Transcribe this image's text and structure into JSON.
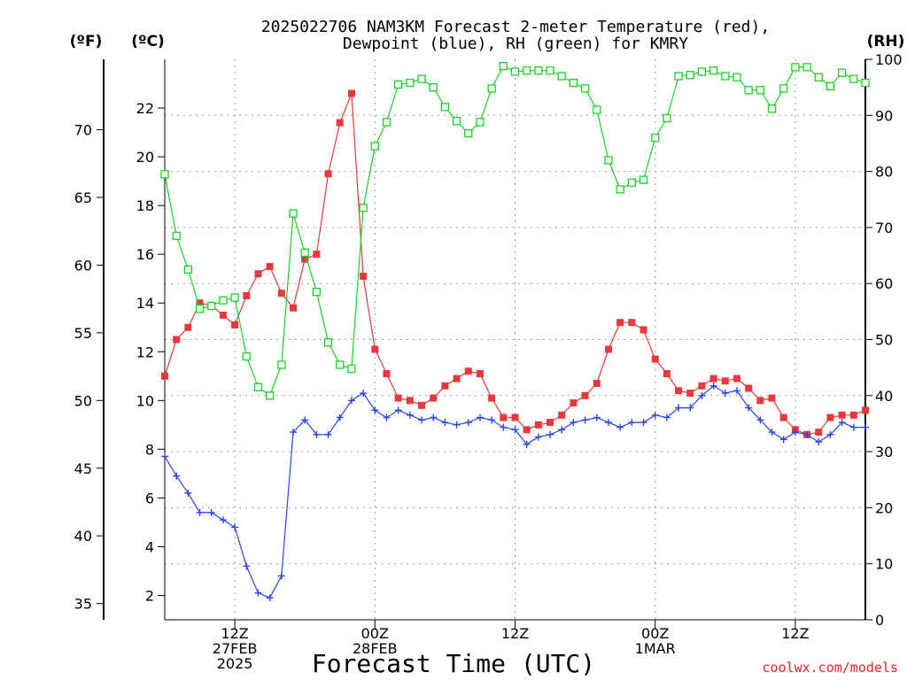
{
  "chart_data": {
    "type": "line",
    "title": [
      "2025022706 NAM3KM Forecast 2-meter Temperature (red),",
      "Dewpoint (blue), RH (green) for KMRY"
    ],
    "xlabel": "Forecast Time (UTC)",
    "watermark": "coolwx.com/models",
    "units": {
      "fahrenheit": "(ºF)",
      "celsius": "(ºC)",
      "rh": "(RH)"
    },
    "x_hours_from_06z_27feb": {
      "min": 0,
      "max": 60,
      "step": 1
    },
    "x_ticks": [
      {
        "hour": 6,
        "lines": [
          "12Z",
          "27FEB",
          "2025"
        ]
      },
      {
        "hour": 18,
        "lines": [
          "00Z",
          "28FEB"
        ]
      },
      {
        "hour": 30,
        "lines": [
          "12Z"
        ]
      },
      {
        "hour": 42,
        "lines": [
          "00Z",
          "1MAR"
        ]
      },
      {
        "hour": 54,
        "lines": [
          "12Z"
        ]
      }
    ],
    "y_left_celsius": {
      "ylim": [
        1,
        24
      ],
      "ticks": [
        2,
        4,
        6,
        8,
        10,
        12,
        14,
        16,
        18,
        20,
        22
      ]
    },
    "y_left_fahrenheit": {
      "ticks": [
        35,
        40,
        45,
        50,
        55,
        60,
        65,
        70
      ]
    },
    "y_right_rh": {
      "ylim": [
        0,
        100
      ],
      "ticks": [
        0,
        10,
        20,
        30,
        40,
        50,
        60,
        70,
        80,
        90,
        100
      ]
    },
    "grid": true,
    "series": [
      {
        "name": "2-meter Temperature",
        "axis": "celsius",
        "color": "#e8383d",
        "marker": "filled-square",
        "values": [
          11.0,
          12.5,
          13.0,
          14.0,
          13.9,
          13.5,
          13.1,
          14.3,
          15.2,
          15.5,
          14.4,
          13.8,
          15.8,
          16.0,
          19.3,
          21.4,
          22.6,
          15.1,
          12.1,
          11.1,
          10.1,
          10.0,
          9.8,
          10.1,
          10.6,
          10.9,
          11.2,
          11.1,
          10.1,
          9.3,
          9.3,
          8.8,
          9.0,
          9.1,
          9.4,
          9.9,
          10.2,
          10.7,
          12.1,
          13.2,
          13.2,
          12.9,
          11.7,
          11.1,
          10.4,
          10.3,
          10.6,
          10.9,
          10.8,
          10.9,
          10.5,
          10.0,
          10.1,
          9.3,
          8.8,
          8.6,
          8.7,
          9.3,
          9.4,
          9.4,
          9.6
        ]
      },
      {
        "name": "Dewpoint",
        "axis": "celsius",
        "color": "#2b45e8",
        "marker": "plus",
        "values": [
          7.7,
          6.9,
          6.2,
          5.4,
          5.4,
          5.1,
          4.8,
          3.2,
          2.1,
          1.9,
          2.8,
          8.7,
          9.2,
          8.6,
          8.6,
          9.3,
          10.0,
          10.3,
          9.6,
          9.3,
          9.6,
          9.4,
          9.2,
          9.3,
          9.1,
          9.0,
          9.1,
          9.3,
          9.2,
          8.9,
          8.8,
          8.2,
          8.5,
          8.6,
          8.8,
          9.1,
          9.2,
          9.3,
          9.1,
          8.9,
          9.1,
          9.1,
          9.4,
          9.3,
          9.7,
          9.7,
          10.2,
          10.6,
          10.3,
          10.4,
          9.7,
          9.2,
          8.7,
          8.4,
          8.7,
          8.6,
          8.3,
          8.6,
          9.1,
          8.9,
          8.9
        ]
      },
      {
        "name": "RH",
        "axis": "rh",
        "color": "#1ed025",
        "marker": "open-square",
        "values": [
          79.5,
          68.5,
          62.5,
          55.5,
          56.0,
          57.0,
          57.5,
          47.0,
          41.5,
          40.0,
          45.5,
          72.5,
          65.5,
          58.5,
          49.5,
          45.5,
          44.8,
          73.5,
          84.5,
          88.8,
          95.5,
          95.8,
          96.5,
          95.0,
          91.5,
          89.0,
          86.8,
          88.8,
          94.8,
          98.8,
          97.8,
          98.0,
          98.0,
          98.0,
          97.0,
          95.8,
          94.8,
          91.0,
          82.0,
          76.8,
          78.0,
          78.5,
          86.0,
          89.5,
          97.0,
          97.2,
          97.8,
          98.0,
          97.0,
          96.8,
          94.5,
          94.5,
          91.2,
          94.8,
          98.6,
          98.6,
          96.8,
          95.2,
          97.6,
          96.5,
          95.8
        ]
      }
    ]
  }
}
